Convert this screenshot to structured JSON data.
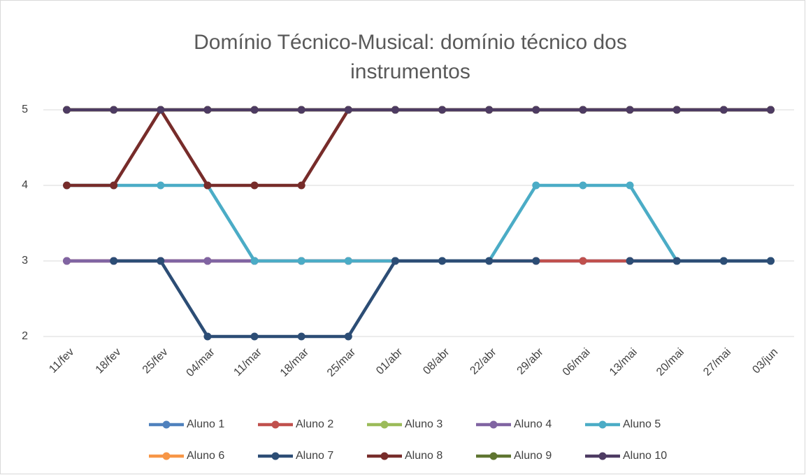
{
  "chart_data": {
    "type": "line",
    "title": [
      "Domínio Técnico-Musical: domínio técnico dos",
      "instrumentos"
    ],
    "categories": [
      "11/fev",
      "18/fev",
      "25/fev",
      "04/mar",
      "11/mar",
      "18/mar",
      "25/mar",
      "01/abr",
      "08/abr",
      "22/abr",
      "29/abr",
      "06/mai",
      "13/mai",
      "20/mai",
      "27/mai",
      "03/jun"
    ],
    "ylim": [
      2,
      5
    ],
    "yticks": [
      2,
      3,
      4,
      5
    ],
    "grid": true,
    "series": [
      {
        "name": "Aluno 1",
        "color": "#4f81bd",
        "values": [
          3,
          3,
          3,
          3,
          3,
          3,
          3,
          3,
          3,
          3,
          3,
          3,
          3,
          3,
          3,
          3
        ]
      },
      {
        "name": "Aluno 2",
        "color": "#c0504d",
        "values": [
          3,
          3,
          3,
          3,
          3,
          3,
          3,
          3,
          3,
          3,
          3,
          3,
          3,
          3,
          3,
          3
        ]
      },
      {
        "name": "Aluno 3",
        "color": "#9bbb59",
        "values": [
          5,
          5,
          5,
          5,
          5,
          5,
          5,
          5,
          5,
          5,
          5,
          5,
          5,
          5,
          5,
          5
        ]
      },
      {
        "name": "Aluno 4",
        "color": "#8064a2",
        "values": [
          3,
          3,
          3,
          3,
          3,
          null,
          null,
          null,
          null,
          null,
          null,
          null,
          null,
          null,
          null,
          null
        ]
      },
      {
        "name": "Aluno 5",
        "color": "#4bacc6",
        "values": [
          4,
          4,
          4,
          4,
          3,
          3,
          3,
          3,
          3,
          3,
          4,
          4,
          4,
          3,
          3,
          3
        ]
      },
      {
        "name": "Aluno 6",
        "color": "#f79646",
        "values": [
          5,
          5,
          5,
          5,
          5,
          5,
          5,
          5,
          5,
          5,
          5,
          5,
          5,
          5,
          5,
          5
        ]
      },
      {
        "name": "Aluno 7",
        "color": "#2c4d75",
        "values": [
          null,
          3,
          3,
          2,
          2,
          2,
          2,
          3,
          3,
          3,
          3,
          null,
          3,
          3,
          3,
          3
        ]
      },
      {
        "name": "Aluno 8",
        "color": "#772c2a",
        "values": [
          4,
          4,
          5,
          4,
          4,
          4,
          5,
          5,
          5,
          5,
          5,
          5,
          5,
          5,
          5,
          5
        ]
      },
      {
        "name": "Aluno 9",
        "color": "#5f7530",
        "values": [
          5,
          5,
          5,
          5,
          5,
          5,
          5,
          5,
          5,
          5,
          5,
          5,
          5,
          5,
          5,
          5
        ]
      },
      {
        "name": "Aluno 10",
        "color": "#4d3b62",
        "values": [
          5,
          5,
          5,
          5,
          5,
          5,
          5,
          5,
          5,
          5,
          5,
          5,
          5,
          5,
          5,
          5
        ]
      }
    ]
  }
}
